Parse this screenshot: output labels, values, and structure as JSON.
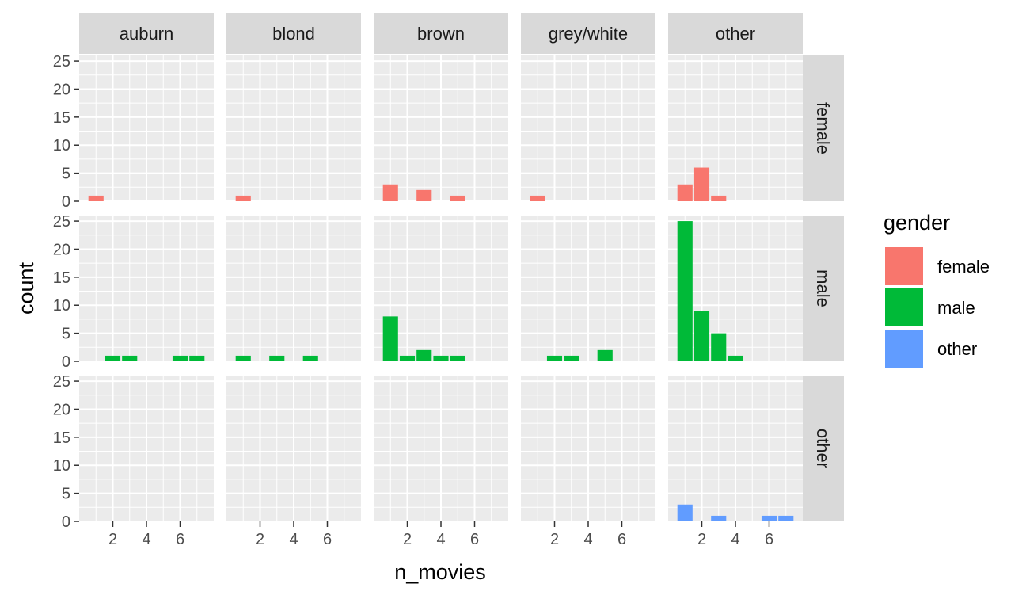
{
  "chart_data": {
    "type": "bar",
    "facet_columns": [
      "auburn",
      "blond",
      "brown",
      "grey/white",
      "other"
    ],
    "facet_rows": [
      "female",
      "male",
      "other"
    ],
    "xlabel": "n_movies",
    "ylabel": "count",
    "x_ticks": [
      2,
      4,
      6
    ],
    "y_ticks": [
      0,
      5,
      10,
      15,
      20,
      25
    ],
    "xlim": [
      0,
      8
    ],
    "ylim": [
      0,
      26
    ],
    "legend": {
      "title": "gender",
      "position": "right",
      "entries": [
        {
          "label": "female",
          "color": "#F8766D"
        },
        {
          "label": "male",
          "color": "#00BA38"
        },
        {
          "label": "other",
          "color": "#619CFF"
        }
      ]
    },
    "grid": true,
    "panels": [
      {
        "col": "auburn",
        "row": "female",
        "bars": [
          {
            "x": 1,
            "count": 1
          }
        ]
      },
      {
        "col": "blond",
        "row": "female",
        "bars": [
          {
            "x": 1,
            "count": 1
          }
        ]
      },
      {
        "col": "brown",
        "row": "female",
        "bars": [
          {
            "x": 1,
            "count": 3
          },
          {
            "x": 3,
            "count": 2
          },
          {
            "x": 5,
            "count": 1
          }
        ]
      },
      {
        "col": "grey/white",
        "row": "female",
        "bars": [
          {
            "x": 1,
            "count": 1
          }
        ]
      },
      {
        "col": "other",
        "row": "female",
        "bars": [
          {
            "x": 1,
            "count": 3
          },
          {
            "x": 2,
            "count": 6
          },
          {
            "x": 3,
            "count": 1
          }
        ]
      },
      {
        "col": "auburn",
        "row": "male",
        "bars": [
          {
            "x": 2,
            "count": 1
          },
          {
            "x": 3,
            "count": 1
          },
          {
            "x": 6,
            "count": 1
          },
          {
            "x": 7,
            "count": 1
          }
        ]
      },
      {
        "col": "blond",
        "row": "male",
        "bars": [
          {
            "x": 1,
            "count": 1
          },
          {
            "x": 3,
            "count": 1
          },
          {
            "x": 5,
            "count": 1
          }
        ]
      },
      {
        "col": "brown",
        "row": "male",
        "bars": [
          {
            "x": 1,
            "count": 8
          },
          {
            "x": 2,
            "count": 1
          },
          {
            "x": 3,
            "count": 2
          },
          {
            "x": 4,
            "count": 1
          },
          {
            "x": 5,
            "count": 1
          }
        ]
      },
      {
        "col": "grey/white",
        "row": "male",
        "bars": [
          {
            "x": 2,
            "count": 1
          },
          {
            "x": 3,
            "count": 1
          },
          {
            "x": 5,
            "count": 2
          }
        ]
      },
      {
        "col": "other",
        "row": "male",
        "bars": [
          {
            "x": 1,
            "count": 25
          },
          {
            "x": 2,
            "count": 9
          },
          {
            "x": 3,
            "count": 5
          },
          {
            "x": 4,
            "count": 1
          }
        ]
      },
      {
        "col": "auburn",
        "row": "other",
        "bars": []
      },
      {
        "col": "blond",
        "row": "other",
        "bars": []
      },
      {
        "col": "brown",
        "row": "other",
        "bars": []
      },
      {
        "col": "grey/white",
        "row": "other",
        "bars": []
      },
      {
        "col": "other",
        "row": "other",
        "bars": [
          {
            "x": 1,
            "count": 3
          },
          {
            "x": 3,
            "count": 1
          },
          {
            "x": 6,
            "count": 1
          },
          {
            "x": 7,
            "count": 1
          }
        ]
      }
    ]
  }
}
